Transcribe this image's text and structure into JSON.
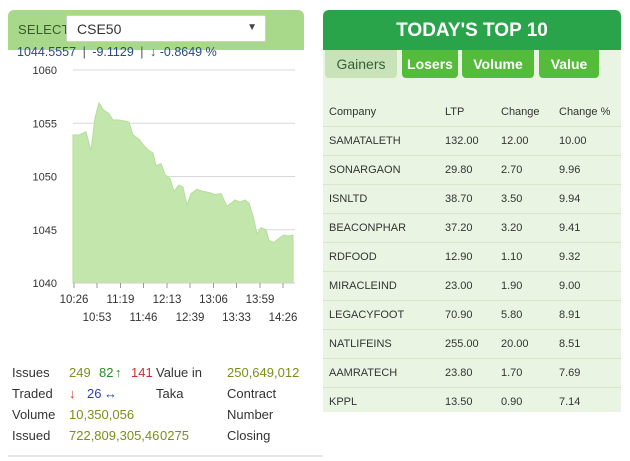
{
  "selector": {
    "label": "SELECT",
    "value": "CSE50"
  },
  "index": {
    "value": "1044.5557",
    "change": "-9.1129",
    "change_arrow": "↓",
    "change_pct": "-0.8649 %"
  },
  "chart_data": {
    "type": "area",
    "title": "",
    "xlabel": "",
    "ylabel": "",
    "ylim": [
      1040,
      1060
    ],
    "y_ticks": [
      "1060",
      "1055",
      "1050",
      "1045",
      "1040"
    ],
    "x_ticks_row1": [
      "10:26",
      "11:19",
      "12:13",
      "13:06",
      "13:59"
    ],
    "x_ticks_row2": [
      "10:53",
      "11:46",
      "12:39",
      "13:33",
      "14:26"
    ],
    "grid": true,
    "fill_color": "#c3e6ad",
    "line_color": "#b5dd9a",
    "series": [
      {
        "values": [
          [
            0,
            1053.9
          ],
          [
            6,
            1053.9
          ],
          [
            13,
            1054.2
          ],
          [
            18,
            1052.4
          ],
          [
            22,
            1055.5
          ],
          [
            26,
            1056.9
          ],
          [
            30,
            1056.3
          ],
          [
            36,
            1055.9
          ],
          [
            40,
            1055.3
          ],
          [
            46,
            1055.3
          ],
          [
            52,
            1055.2
          ],
          [
            56,
            1055.1
          ],
          [
            60,
            1053.9
          ],
          [
            66,
            1053.5
          ],
          [
            70,
            1053.0
          ],
          [
            75,
            1052.5
          ],
          [
            80,
            1052.2
          ],
          [
            83,
            1051.0
          ],
          [
            88,
            1051.2
          ],
          [
            92,
            1050.2
          ],
          [
            97,
            1049.8
          ],
          [
            101,
            1048.6
          ],
          [
            106,
            1049.2
          ],
          [
            110,
            1049.0
          ],
          [
            114,
            1047.3
          ],
          [
            118,
            1048.4
          ],
          [
            124,
            1048.8
          ],
          [
            130,
            1048.6
          ],
          [
            136,
            1048.5
          ],
          [
            142,
            1048.3
          ],
          [
            148,
            1048.4
          ],
          [
            154,
            1047.2
          ],
          [
            158,
            1047.5
          ],
          [
            162,
            1047.8
          ],
          [
            167,
            1047.6
          ],
          [
            172,
            1047.8
          ],
          [
            176,
            1047.5
          ],
          [
            180,
            1046.3
          ],
          [
            184,
            1044.6
          ],
          [
            188,
            1045.2
          ],
          [
            193,
            1045.0
          ],
          [
            196,
            1044.0
          ],
          [
            201,
            1043.8
          ],
          [
            206,
            1044.2
          ],
          [
            211,
            1044.5
          ],
          [
            215,
            1044.4
          ],
          [
            220,
            1044.5
          ]
        ]
      }
    ]
  },
  "stats": {
    "issues_label": "Issues",
    "issues_total": "249",
    "issues_up": "82",
    "up_arrow": "↑",
    "issues_down": "141",
    "value_label": "Value in",
    "value_amount": "250,649,012",
    "traded_label": "Traded",
    "down_arrow": "↓",
    "issues_unch": "26",
    "flat_arrow": "↔",
    "taka_label": "Taka",
    "contract_label": "Contract",
    "volume_label": "Volume",
    "volume_value": "10,350,056",
    "number_label": "Number",
    "issued_label": "Issued",
    "issued_value": "722,809,305,46",
    "issued_tail": "0275",
    "closing_label": "Closing"
  },
  "top10": {
    "title": "TODAY'S TOP 10",
    "tabs": [
      "Gainers",
      "Losers",
      "Volume",
      "Value"
    ],
    "active_tab": "Gainers",
    "columns": [
      "Company",
      "LTP",
      "Change",
      "Change %"
    ],
    "rows": [
      [
        "SAMATALETH",
        "132.00",
        "12.00",
        "10.00"
      ],
      [
        "SONARGAON",
        "29.80",
        "2.70",
        "9.96"
      ],
      [
        "ISNLTD",
        "38.70",
        "3.50",
        "9.94"
      ],
      [
        "BEACONPHAR",
        "37.20",
        "3.20",
        "9.41"
      ],
      [
        "RDFOOD",
        "12.90",
        "1.10",
        "9.32"
      ],
      [
        "MIRACLEIND",
        "23.00",
        "1.90",
        "9.00"
      ],
      [
        "LEGACYFOOT",
        "70.90",
        "5.80",
        "8.91"
      ],
      [
        "NATLIFEINS",
        "255.00",
        "20.00",
        "8.51"
      ],
      [
        "AAMRATECH",
        "23.80",
        "1.70",
        "7.69"
      ],
      [
        "KPPL",
        "13.50",
        "0.90",
        "7.14"
      ]
    ]
  }
}
